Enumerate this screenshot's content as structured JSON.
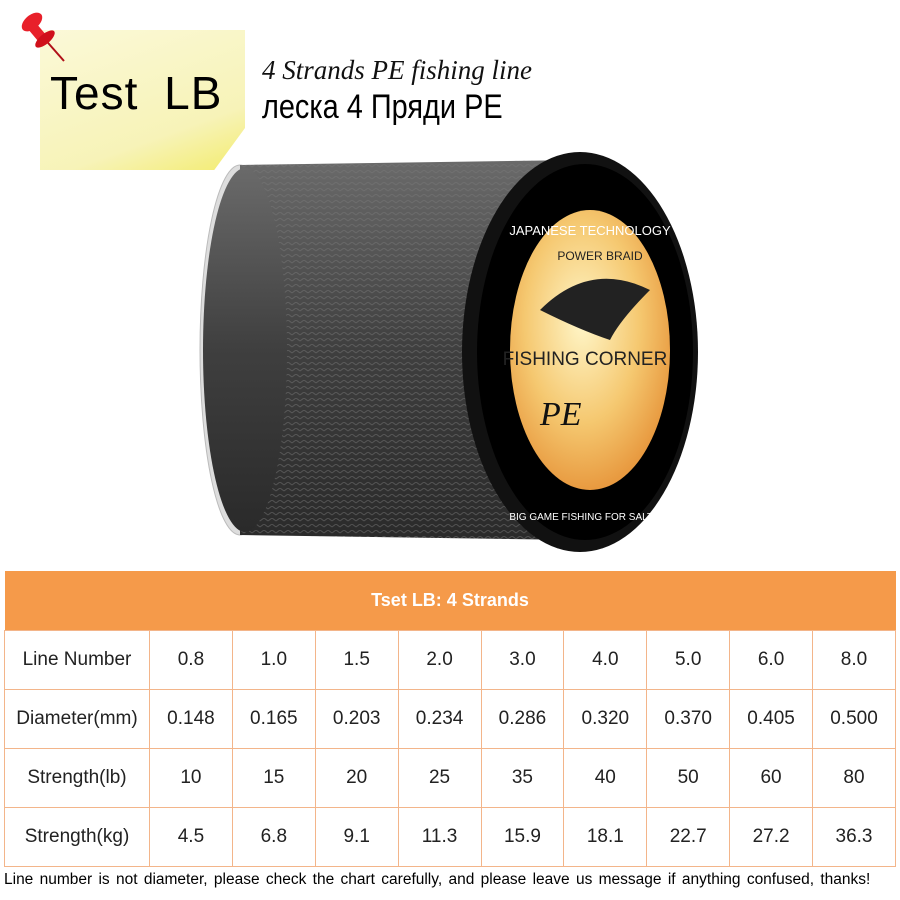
{
  "banner": {
    "note_title": "Test  LB",
    "subtitle_en": "4 Strands PE fishing line",
    "subtitle_ru": "леска 4 Пряди PE"
  },
  "spool_label": {
    "top_arc": "JAPANESE TECHNOLOGY",
    "brand_arc": "POWER BRAID",
    "name": "FISHING CORNER",
    "mark": "PE",
    "bottom_arc": "BIG GAME FISHING FOR SALT WATER"
  },
  "colors": {
    "header": "#f59a4a",
    "line": "#4a4a4a",
    "note": "#f7f3b8",
    "pin": "#e8202a"
  },
  "table": {
    "title": "Tset LB: 4 Strands",
    "rows": [
      {
        "label": "Line Number",
        "values": [
          "0.8",
          "1.0",
          "1.5",
          "2.0",
          "3.0",
          "4.0",
          "5.0",
          "6.0",
          "8.0"
        ]
      },
      {
        "label": "Diameter(mm)",
        "values": [
          "0.148",
          "0.165",
          "0.203",
          "0.234",
          "0.286",
          "0.320",
          "0.370",
          "0.405",
          "0.500"
        ]
      },
      {
        "label": "Strength(lb)",
        "values": [
          "10",
          "15",
          "20",
          "25",
          "35",
          "40",
          "50",
          "60",
          "80"
        ]
      },
      {
        "label": "Strength(kg)",
        "values": [
          "4.5",
          "6.8",
          "9.1",
          "11.3",
          "15.9",
          "18.1",
          "22.7",
          "27.2",
          "36.3"
        ]
      }
    ]
  },
  "footer": "Line number is not diameter, please check the chart carefully, and please leave us message if anything confused, thanks!"
}
